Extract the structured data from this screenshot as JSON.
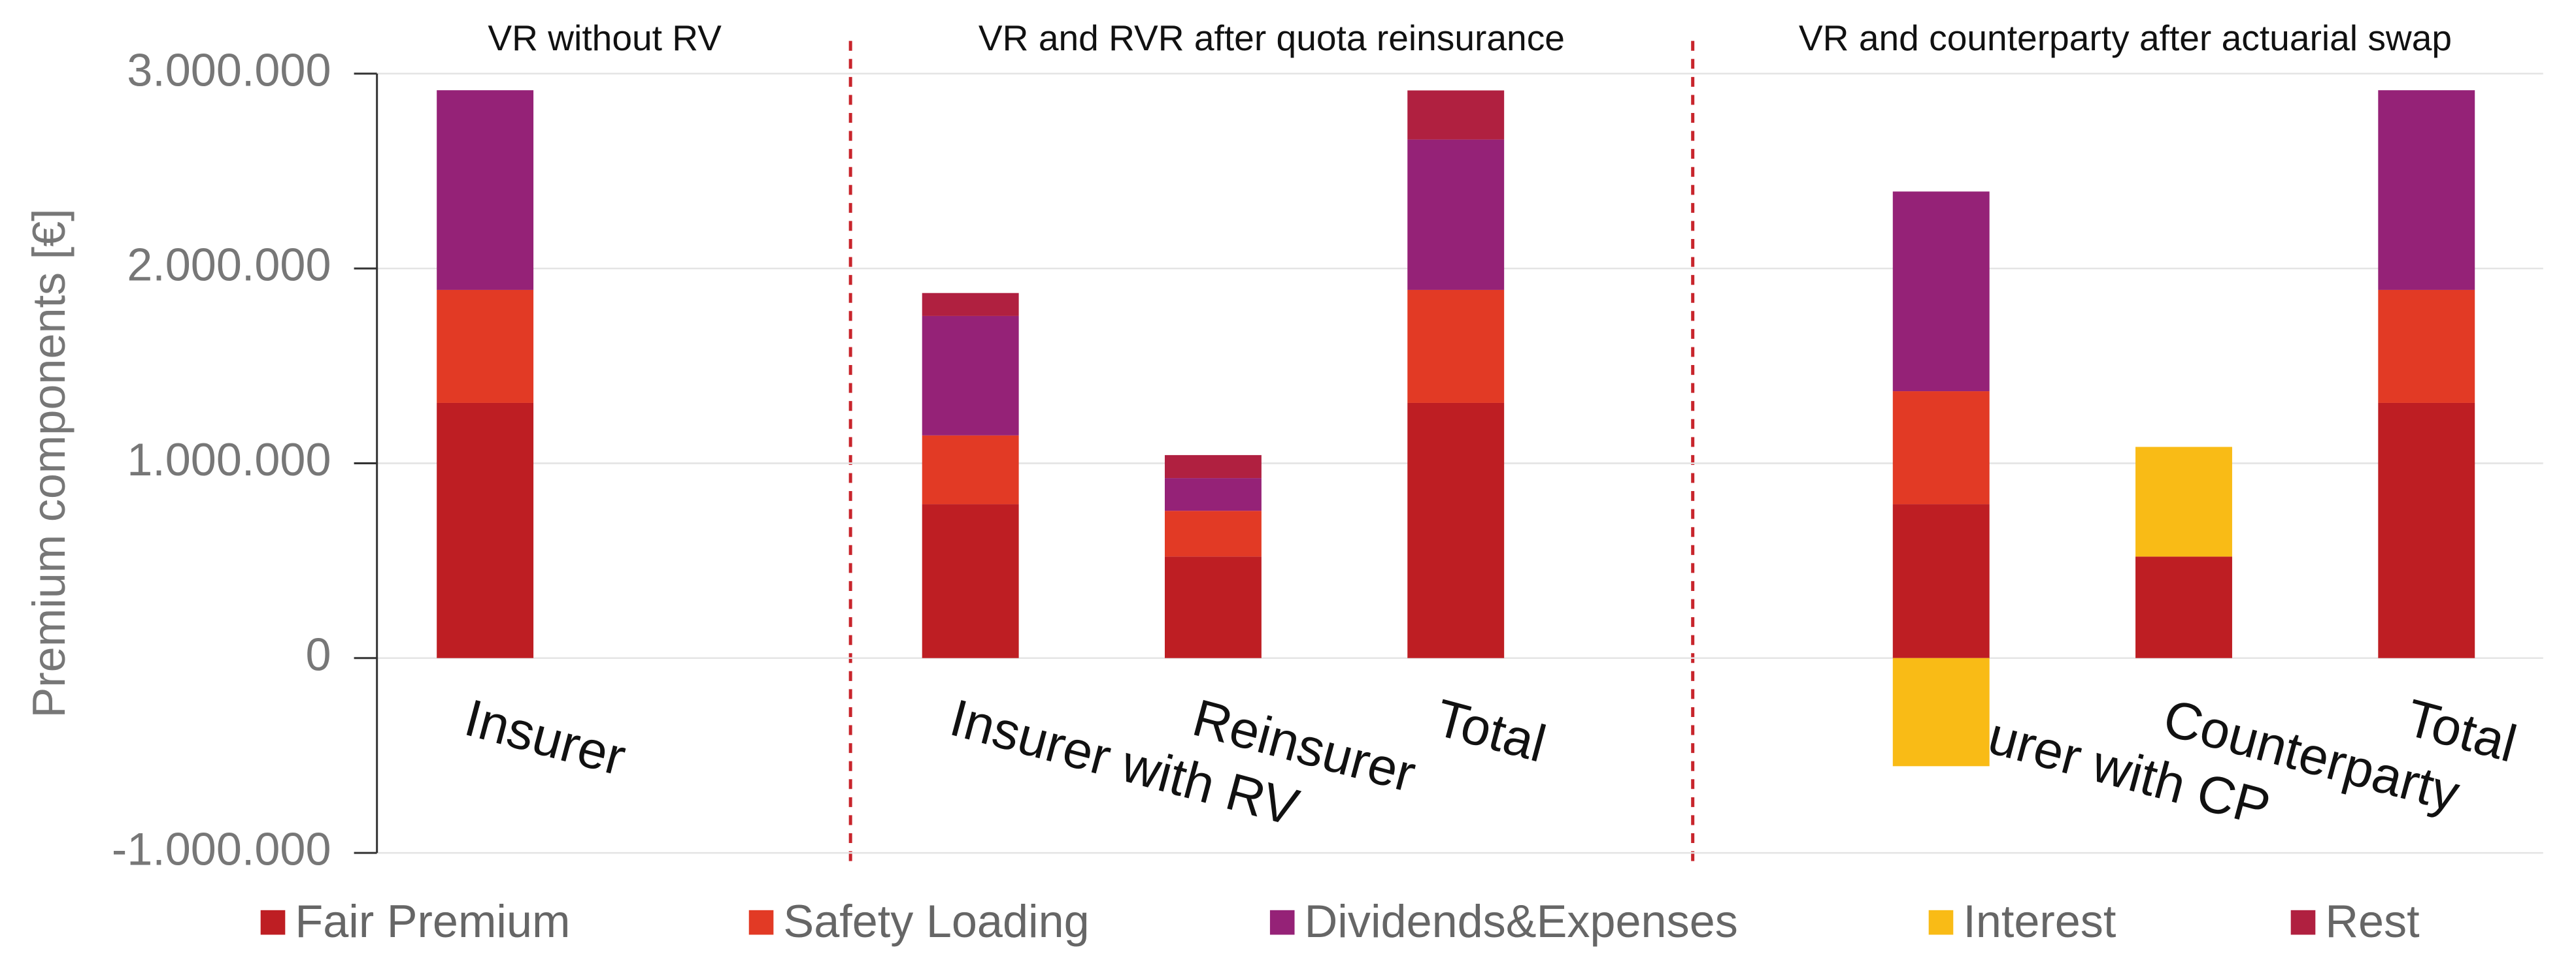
{
  "chart_data": {
    "type": "stacked_bar",
    "y_axis_label": "Premium components [€]",
    "group_titles": [
      "VR without RV",
      "VR and RVR after quota reinsurance",
      "VR and counterparty after actuarial swap"
    ],
    "categories": [
      "Insurer",
      null,
      "Insurer with RV",
      "Reinsurer",
      "Total",
      null,
      "Insurer with CP",
      "Counterparty",
      "Total"
    ],
    "series": [
      {
        "name": "Fair Premium",
        "color": "#be1e23",
        "values": [
          1310000,
          null,
          790000,
          521000,
          1310000,
          null,
          790000,
          521000,
          1310000
        ]
      },
      {
        "name": "Safety Loading",
        "color": "#e23a25",
        "values": [
          580000,
          null,
          353000,
          235000,
          580000,
          null,
          580000,
          0,
          580000
        ]
      },
      {
        "name": "Dividends&Expenses",
        "color": "#952277",
        "values": [
          1025000,
          null,
          613000,
          168000,
          772000,
          null,
          1025000,
          0,
          1025000
        ]
      },
      {
        "name": "Interest",
        "color": "#f9bb16",
        "values": [
          0,
          null,
          0,
          0,
          0,
          null,
          -555000,
          563000,
          0
        ]
      },
      {
        "name": "Rest",
        "color": "#b02040",
        "values": [
          0,
          null,
          118000,
          118000,
          252000,
          null,
          0,
          0,
          0
        ]
      }
    ],
    "ylim": [
      -1000000,
      3000000
    ],
    "yticks": [
      {
        "value": -1000000,
        "label": "-1.000.000"
      },
      0,
      {
        "value": 1000000,
        "label": "1.000.000"
      },
      {
        "value": 2000000,
        "label": "2.000.000"
      },
      {
        "value": 3000000,
        "label": "3.000.000"
      }
    ],
    "grid": true,
    "legend": "bottom"
  }
}
